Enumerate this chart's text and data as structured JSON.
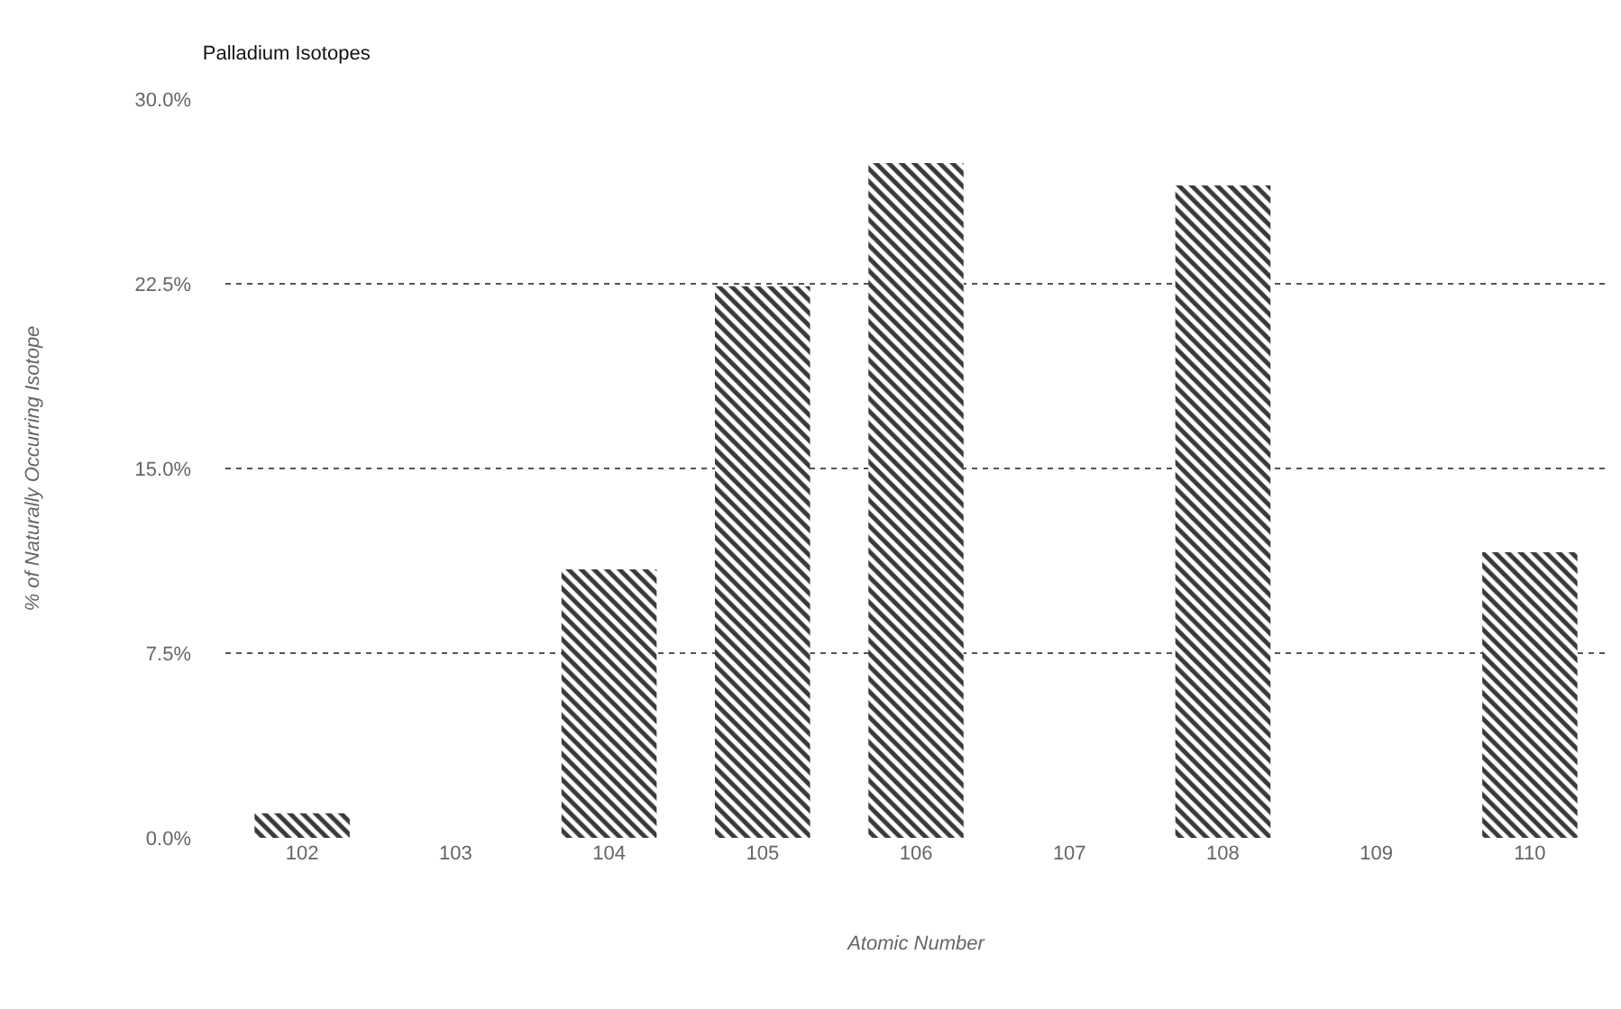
{
  "chart_data": {
    "type": "bar",
    "title": "Palladium Isotopes",
    "xlabel": "Atomic Number",
    "ylabel": "% of Naturally Occurring Isotope",
    "categories": [
      "102",
      "103",
      "104",
      "105",
      "106",
      "107",
      "108",
      "109",
      "110"
    ],
    "values": [
      1.0,
      null,
      10.9,
      22.4,
      27.4,
      null,
      26.5,
      null,
      11.6
    ],
    "color": "#3a3a3a",
    "ylim": [
      0,
      30
    ],
    "yticks": [
      {
        "value": 0,
        "label": "0.0%"
      },
      {
        "value": 7.5,
        "label": "7.5%"
      },
      {
        "value": 15,
        "label": "15.0%"
      },
      {
        "value": 22.5,
        "label": "22.5%"
      },
      {
        "value": 30,
        "label": "30.0%"
      }
    ],
    "grid": "y",
    "legend": false
  }
}
